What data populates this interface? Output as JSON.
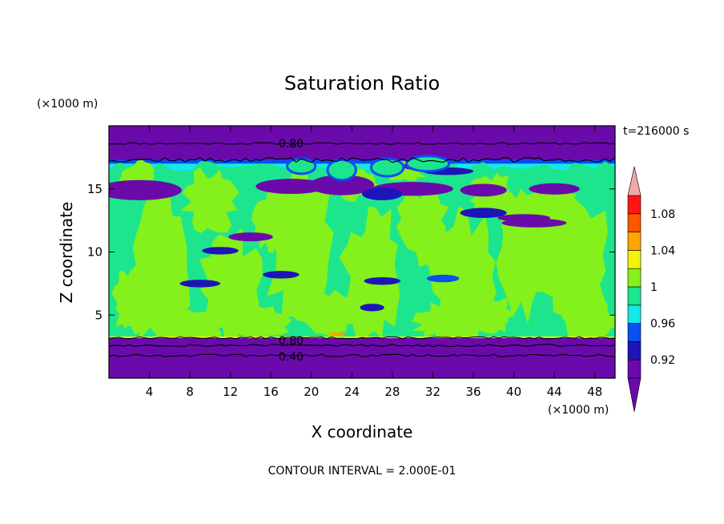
{
  "chart_data": {
    "type": "heatmap",
    "title": "Saturation Ratio",
    "xlabel": "X coordinate",
    "ylabel": "Z coordinate",
    "x_unit": "(×1000 m)",
    "y_unit": "(×1000 m)",
    "xlim": [
      0,
      50
    ],
    "ylim": [
      0,
      20
    ],
    "x_ticks": [
      4,
      8,
      12,
      16,
      20,
      24,
      28,
      32,
      36,
      40,
      44,
      48
    ],
    "y_ticks": [
      5,
      10,
      15
    ],
    "time_label": "t=216000 s",
    "footer": "CONTOUR INTERVAL = 2.000E-01",
    "contour_labels": [
      {
        "text": "0.80",
        "x": 18,
        "z": 18.6
      },
      {
        "text": "0.80",
        "x": 18,
        "z": 3.0
      },
      {
        "text": "0.40",
        "x": 18,
        "z": 1.7
      }
    ],
    "colorbar": {
      "tick_labels": [
        "1.08",
        "1.04",
        "1",
        "0.96",
        "0.92"
      ],
      "levels": [
        0.9,
        0.92,
        0.94,
        0.96,
        0.98,
        1.0,
        1.02,
        1.04,
        1.06,
        1.08,
        1.1
      ],
      "colors": [
        "#6a0aab",
        "#1d15b8",
        "#0a4ff0",
        "#16e8e8",
        "#1de58d",
        "#84f01c",
        "#f2f20a",
        "#ffa400",
        "#ff5500",
        "#ff1515",
        "#f2a6a6"
      ],
      "under_color": "#6a0aab",
      "over_color": "#f2a6a6"
    },
    "field_colors": {
      "low": "#6a0aab",
      "dark_blue": "#1d15b8",
      "blue": "#0a4ff0",
      "cyan": "#16e8e8",
      "teal": "#1de58d",
      "green": "#84f01c",
      "yellow": "#f2f20a",
      "orange": "#ffa400"
    }
  }
}
